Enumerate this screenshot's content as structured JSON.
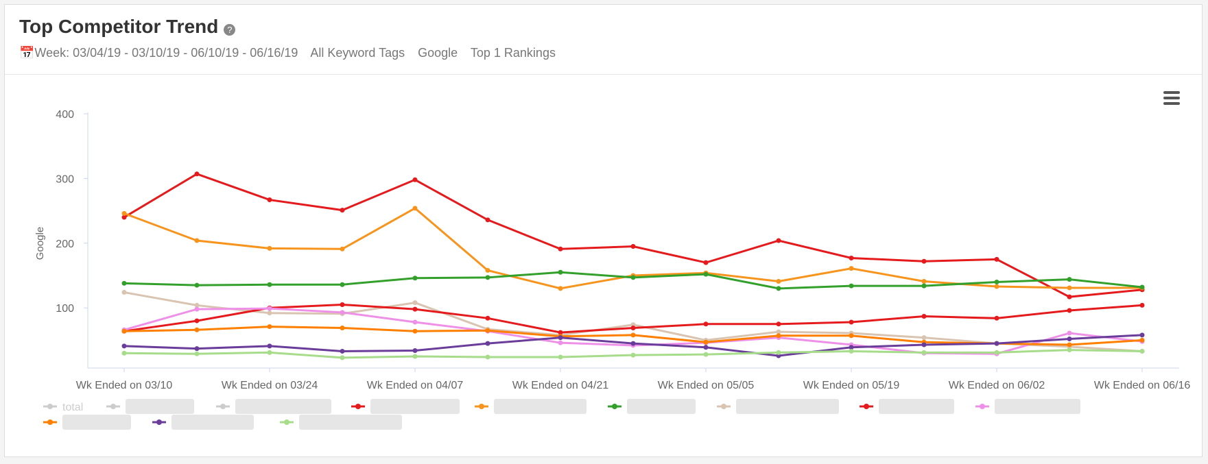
{
  "header": {
    "title": "Top Competitor Trend",
    "week": "Week: 03/04/19 - 03/10/19 - 06/10/19 - 06/16/19",
    "tags": "All Keyword Tags",
    "engine": "Google",
    "rankings": "Top 1 Rankings"
  },
  "chart_data": {
    "type": "line",
    "y_label": "Google",
    "categories": [
      "Wk Ended on 03/10",
      null,
      "Wk Ended on 03/24",
      null,
      "Wk Ended on 04/07",
      null,
      "Wk Ended on 04/21",
      null,
      "Wk Ended on 05/05",
      null,
      "Wk Ended on 05/19",
      null,
      "Wk Ended on 06/02",
      null,
      "Wk Ended on 06/16"
    ],
    "ylim": [
      7,
      400
    ],
    "yticks": [
      100,
      200,
      300,
      400
    ],
    "series": [
      {
        "name": "total",
        "color": "#cccccc",
        "visible": false
      },
      {
        "name": null,
        "color": "#cccccc",
        "visible": false
      },
      {
        "name": null,
        "color": "#cccccc",
        "visible": false
      },
      {
        "name": null,
        "color": "#e41a1c",
        "values": [
          240,
          307,
          267,
          251,
          298,
          236,
          191,
          195,
          170,
          204,
          177,
          172,
          175,
          117,
          128
        ]
      },
      {
        "name": null,
        "color": "#f7941d",
        "values": [
          246,
          204,
          192,
          191,
          254,
          158,
          130,
          150,
          154,
          141,
          161,
          141,
          133,
          131,
          131
        ]
      },
      {
        "name": null,
        "color": "#33a02c",
        "values": [
          138,
          135,
          136,
          136,
          146,
          147,
          155,
          147,
          152,
          130,
          134,
          134,
          140,
          144,
          132
        ]
      },
      {
        "name": null,
        "color": "#d9c4b1",
        "values": [
          124,
          104,
          92,
          91,
          108,
          67,
          58,
          74,
          50,
          63,
          61,
          54,
          45,
          40,
          33
        ]
      },
      {
        "name": null,
        "color": "#e41a1c",
        "values": [
          64,
          80,
          100,
          105,
          98,
          84,
          62,
          69,
          75,
          75,
          78,
          87,
          84,
          96,
          104
        ]
      },
      {
        "name": null,
        "color": "#ee90e8",
        "values": [
          66,
          98,
          99,
          93,
          78,
          64,
          46,
          42,
          46,
          54,
          43,
          30,
          29,
          61,
          48
        ]
      },
      {
        "name": null,
        "color": "#ff7f00",
        "values": [
          64,
          66,
          71,
          69,
          64,
          65,
          56,
          58,
          47,
          57,
          57,
          47,
          45,
          43,
          50
        ]
      },
      {
        "name": null,
        "color": "#6a3d9a",
        "values": [
          41,
          37,
          41,
          33,
          34,
          45,
          54,
          45,
          39,
          26,
          39,
          43,
          45,
          52,
          58
        ]
      },
      {
        "name": null,
        "color": "#a6dc8a",
        "values": [
          30,
          29,
          31,
          23,
          25,
          24,
          24,
          27,
          28,
          31,
          33,
          31,
          31,
          35,
          33
        ]
      }
    ]
  }
}
